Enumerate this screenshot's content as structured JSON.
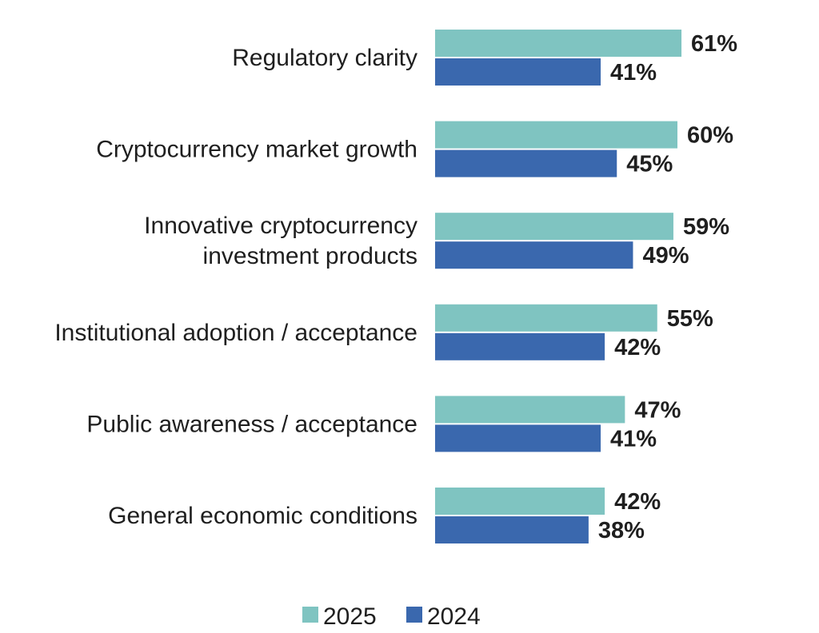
{
  "chart_data": {
    "type": "bar",
    "orientation": "horizontal",
    "categories": [
      [
        "Regulatory clarity"
      ],
      [
        "Cryptocurrency market growth"
      ],
      [
        "Innovative cryptocurrency",
        "investment products"
      ],
      [
        "Institutional adoption / acceptance"
      ],
      [
        "Public awareness / acceptance"
      ],
      [
        "General economic conditions"
      ]
    ],
    "series": [
      {
        "name": "2025",
        "color": "#7fc4c1",
        "values": [
          61,
          60,
          59,
          55,
          47,
          42
        ]
      },
      {
        "name": "2024",
        "color": "#3a68ae",
        "values": [
          41,
          45,
          49,
          42,
          41,
          38
        ]
      }
    ],
    "value_suffix": "%",
    "xlim": [
      0,
      100
    ],
    "grid": false,
    "legend_position": "bottom-center"
  }
}
